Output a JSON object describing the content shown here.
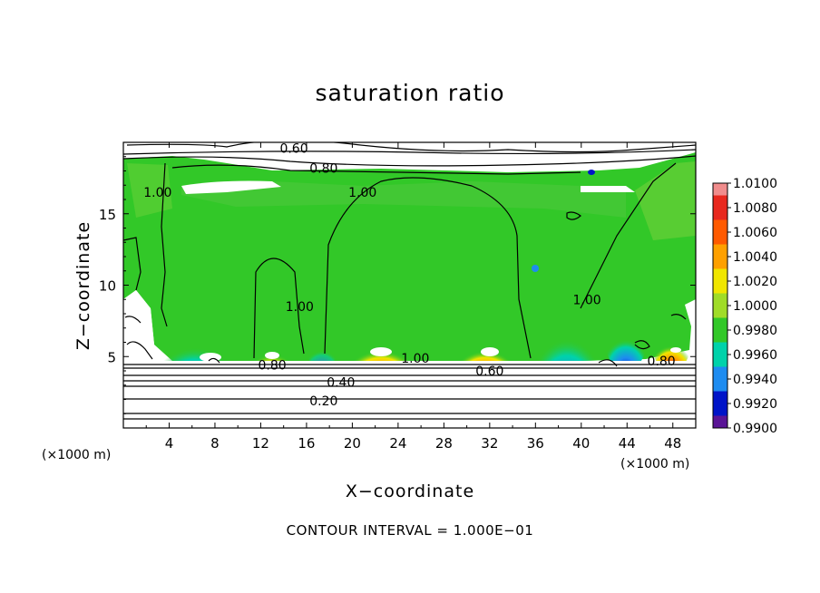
{
  "chart_data": {
    "type": "heatmap",
    "title": "saturation ratio",
    "xlabel": "X−coordinate",
    "ylabel": "Z−coordinate",
    "x_unit_left": "(×1000 m)",
    "x_unit_right": "(×1000 m)",
    "xlim": [
      0,
      50
    ],
    "ylim": [
      0,
      20
    ],
    "x_ticks": [
      4,
      8,
      12,
      16,
      20,
      24,
      28,
      32,
      36,
      40,
      44,
      48
    ],
    "y_ticks": [
      5,
      10,
      15
    ],
    "colorbar": {
      "labels": [
        "1.0100",
        "1.0080",
        "1.0060",
        "1.0040",
        "1.0020",
        "1.0000",
        "0.9980",
        "0.9960",
        "0.9940",
        "0.9920",
        "0.9900"
      ],
      "colors": [
        "#f08c8c",
        "#e8281e",
        "#ff5a00",
        "#ffa000",
        "#f0e600",
        "#a0dc28",
        "#32c828",
        "#00d2aa",
        "#1e8cf0",
        "#0014c8",
        "#5a1496"
      ]
    },
    "contour_labels": [
      {
        "text": "0.60",
        "x": 14.9,
        "z": 19.6
      },
      {
        "text": "0.80",
        "x": 17.5,
        "z": 18.2
      },
      {
        "text": "1.00",
        "x": 3.0,
        "z": 16.5
      },
      {
        "text": "1.00",
        "x": 20.9,
        "z": 16.5
      },
      {
        "text": "1.00",
        "x": 15.4,
        "z": 8.5
      },
      {
        "text": "1.00",
        "x": 40.5,
        "z": 9.0
      },
      {
        "text": "1.00",
        "x": 25.5,
        "z": 4.9
      },
      {
        "text": "0.80",
        "x": 13.0,
        "z": 4.4
      },
      {
        "text": "0.60",
        "x": 32.0,
        "z": 4.0
      },
      {
        "text": "0.80",
        "x": 47.0,
        "z": 4.7
      },
      {
        "text": "0.40",
        "x": 19.0,
        "z": 3.2
      },
      {
        "text": "0.20",
        "x": 17.5,
        "z": 1.9
      }
    ],
    "contour_interval": "CONTOUR INTERVAL = 1.000E−01"
  }
}
